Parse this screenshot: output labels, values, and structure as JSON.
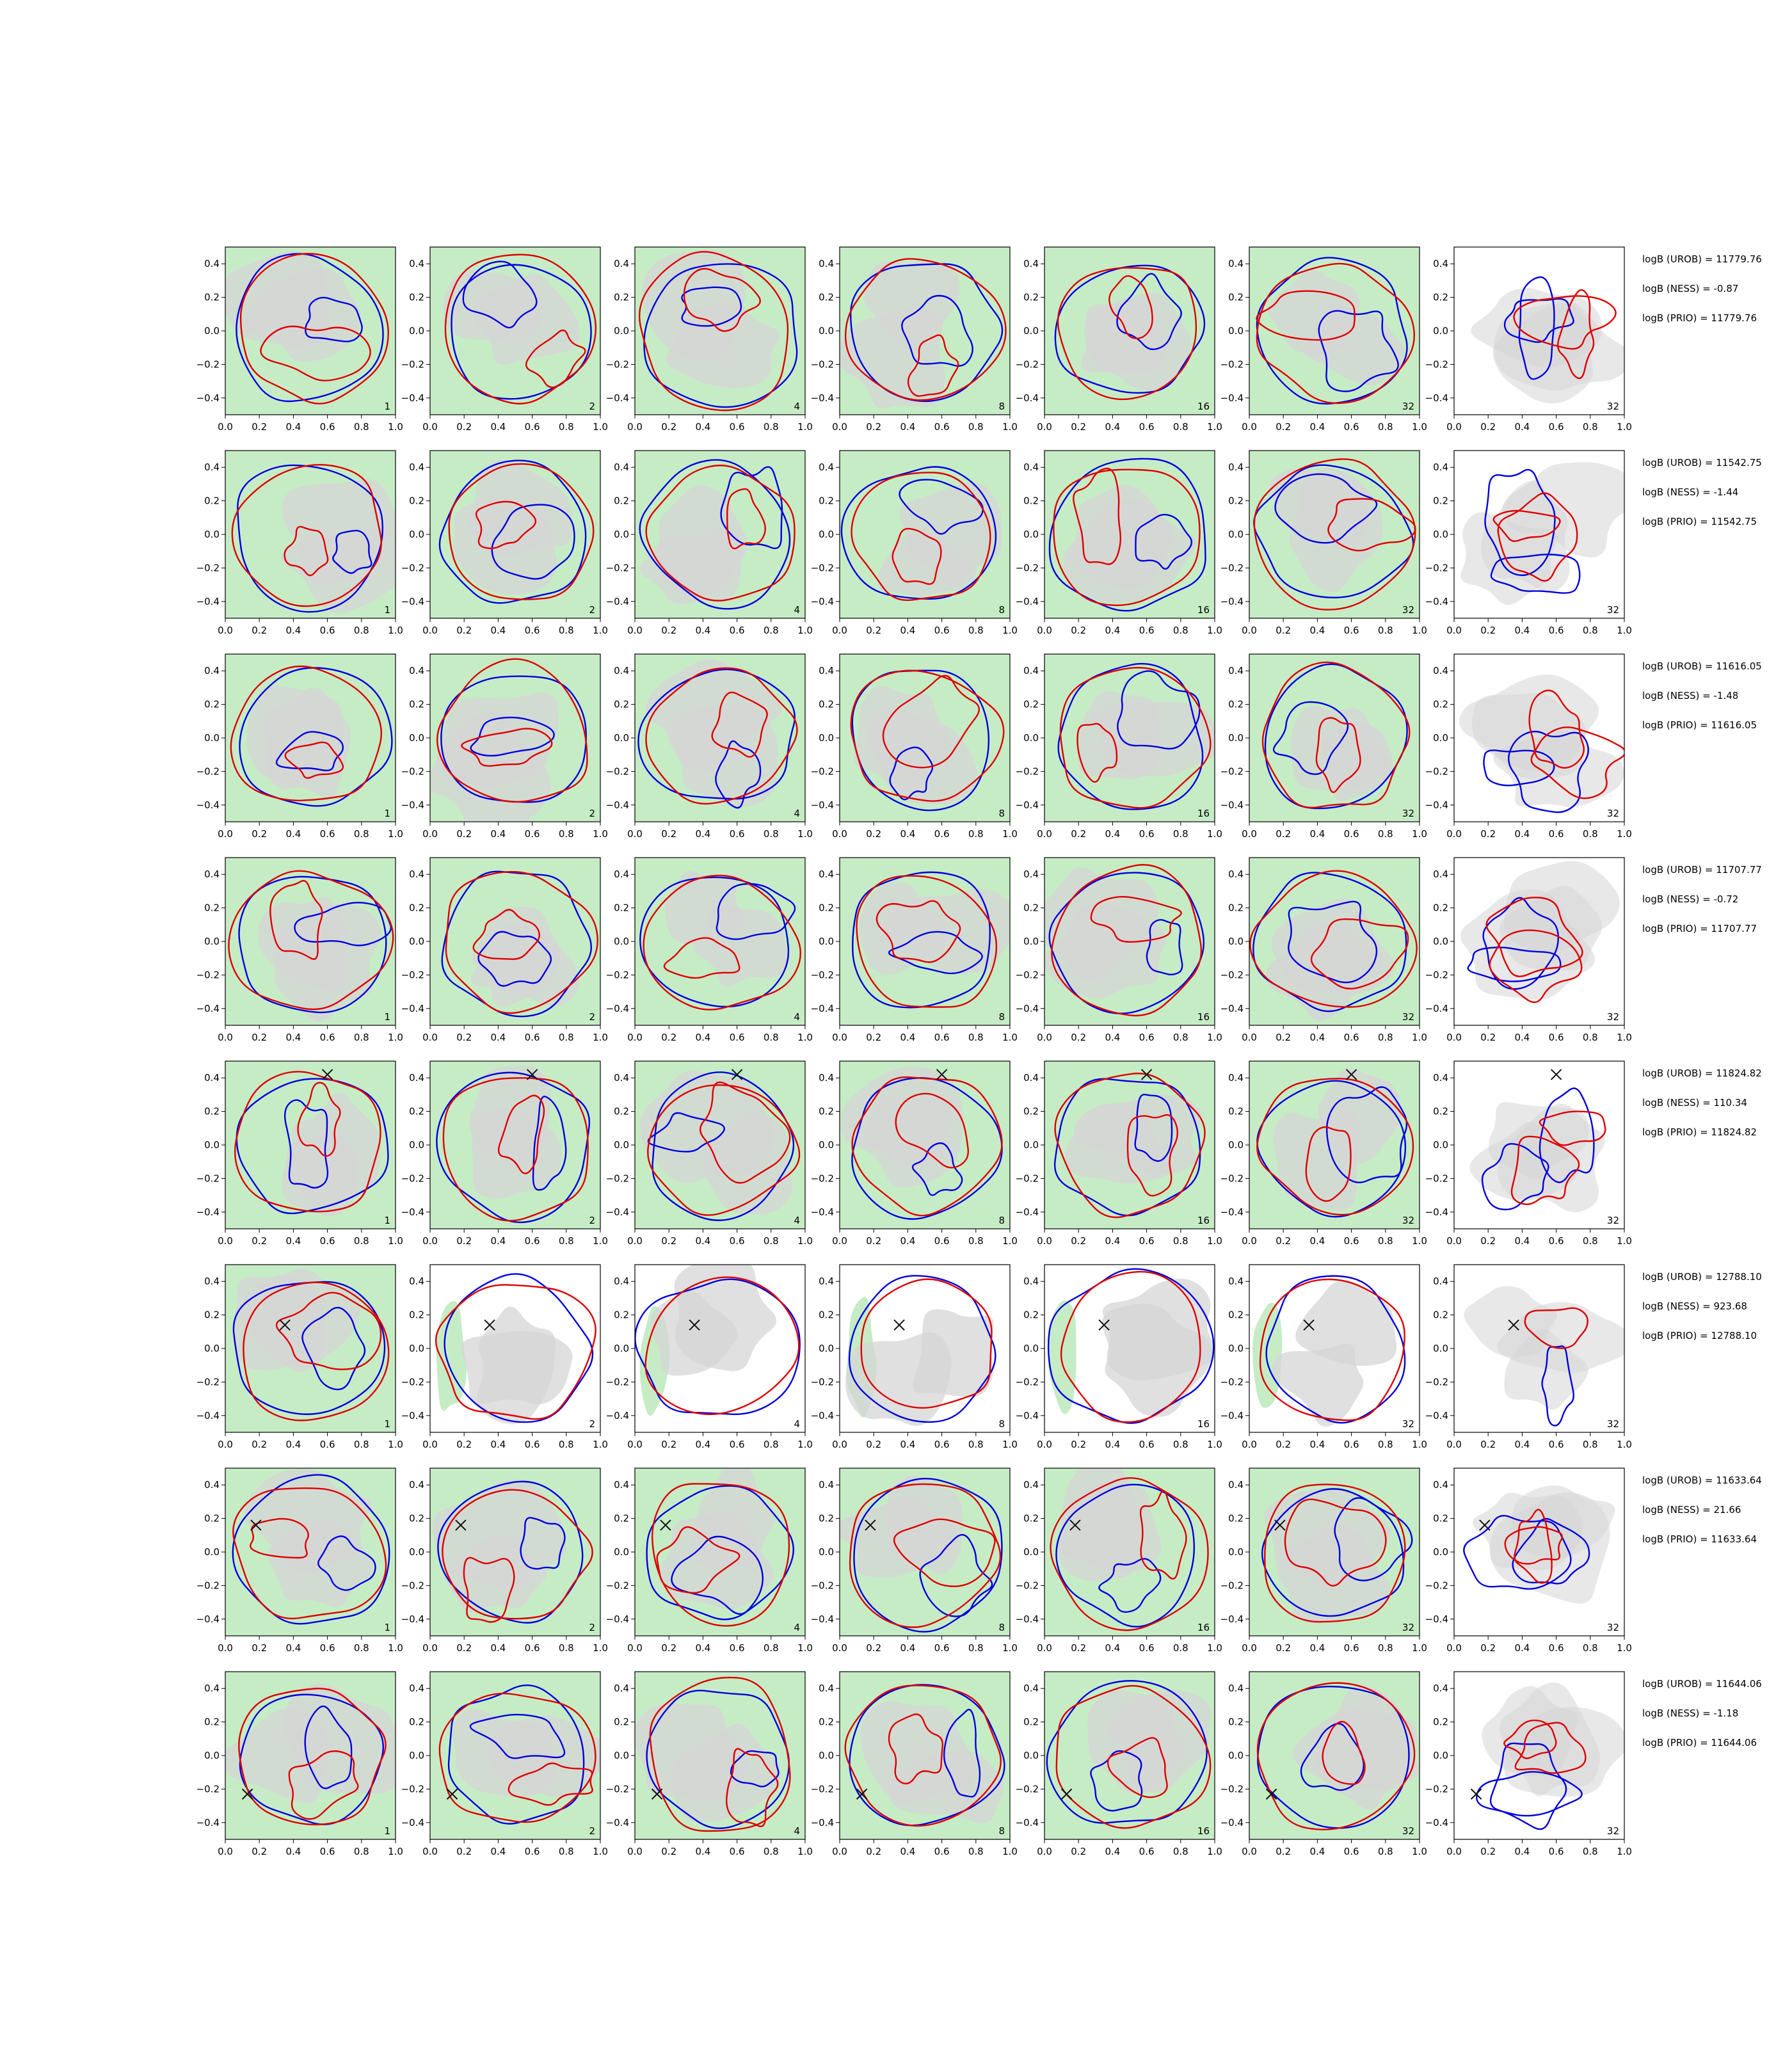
{
  "figure": {
    "x_ticks": [
      "0.0",
      "0.2",
      "0.4",
      "0.6",
      "0.8",
      "1.0"
    ],
    "y_ticks": [
      "0.4",
      "0.2",
      "0.0",
      "−0.2",
      "−0.4"
    ],
    "colors": {
      "background_fill": "#c6ecc6",
      "posterior_fill": "#d6d6d6",
      "blue_contour": "#0000dd",
      "red_contour": "#dd0000",
      "marker": "#111111"
    }
  },
  "chart_data": {
    "type": "contour",
    "columns": 7,
    "xlim": [
      0,
      1
    ],
    "ylim": [
      -0.5,
      0.5
    ],
    "grid": false,
    "rows": [
      {
        "panel_labels": [
          "1",
          "2",
          "4",
          "8",
          "16",
          "32",
          "32"
        ],
        "last_panel_background": "white",
        "marker": null,
        "annotations": [
          "logB (UROB) = 11779.76",
          "logB (NESS) = -0.87",
          "logB (PRIO) = 11779.76"
        ]
      },
      {
        "panel_labels": [
          "1",
          "2",
          "4",
          "8",
          "16",
          "32",
          "32"
        ],
        "last_panel_background": "white",
        "marker": null,
        "annotations": [
          "logB (UROB) = 11542.75",
          "logB (NESS) = -1.44",
          "logB (PRIO) = 11542.75"
        ]
      },
      {
        "panel_labels": [
          "1",
          "2",
          "4",
          "8",
          "16",
          "32",
          "32"
        ],
        "last_panel_background": "white",
        "marker": null,
        "annotations": [
          "logB (UROB) = 11616.05",
          "logB (NESS) = -1.48",
          "logB (PRIO) = 11616.05"
        ]
      },
      {
        "panel_labels": [
          "1",
          "2",
          "4",
          "8",
          "16",
          "32",
          "32"
        ],
        "last_panel_background": "white",
        "marker": null,
        "annotations": [
          "logB (UROB) = 11707.77",
          "logB (NESS) = -0.72",
          "logB (PRIO) = 11707.77"
        ]
      },
      {
        "panel_labels": [
          "1",
          "2",
          "4",
          "8",
          "16",
          "32",
          "32"
        ],
        "last_panel_background": "white",
        "marker": [
          0.6,
          0.42
        ],
        "annotations": [
          "logB (UROB) = 11824.82",
          "logB (NESS) = 110.34",
          "logB (PRIO) = 11824.82"
        ]
      },
      {
        "panel_labels": [
          "1",
          "2",
          "4",
          "8",
          "16",
          "32",
          "32"
        ],
        "last_panel_background": "white",
        "marker": [
          0.35,
          0.14
        ],
        "annotations": [
          "logB (UROB) = 12788.10",
          "logB (NESS) = 923.68",
          "logB (PRIO) = 12788.10"
        ]
      },
      {
        "panel_labels": [
          "1",
          "2",
          "4",
          "8",
          "16",
          "32",
          "32"
        ],
        "last_panel_background": "white",
        "marker": [
          0.18,
          0.16
        ],
        "annotations": [
          "logB (UROB) = 11633.64",
          "logB (NESS) = 21.66",
          "logB (PRIO) = 11633.64"
        ]
      },
      {
        "panel_labels": [
          "1",
          "2",
          "4",
          "8",
          "16",
          "32",
          "32"
        ],
        "last_panel_background": "white",
        "marker": [
          0.13,
          -0.23
        ],
        "annotations": [
          "logB (UROB) = 11644.06",
          "logB (NESS) = -1.18",
          "logB (PRIO) = 11644.06"
        ]
      }
    ]
  }
}
